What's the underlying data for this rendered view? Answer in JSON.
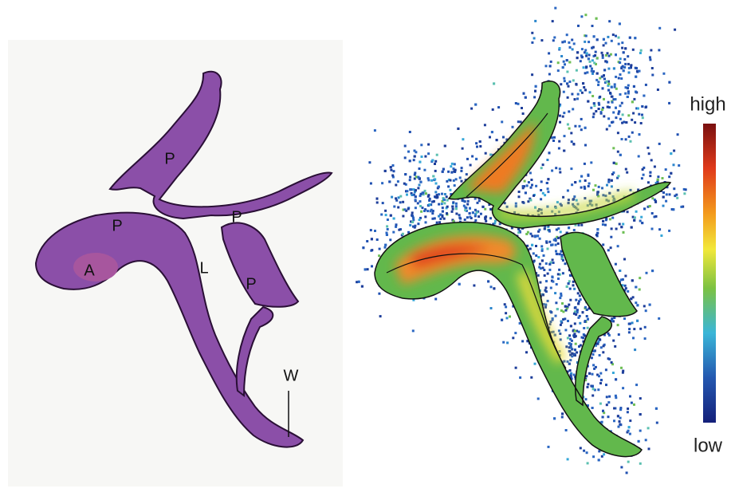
{
  "histology": {
    "labels": [
      "P",
      "P",
      "P",
      "P",
      "A",
      "L",
      "W"
    ]
  },
  "colorbar": {
    "high": "high",
    "low": "low"
  }
}
